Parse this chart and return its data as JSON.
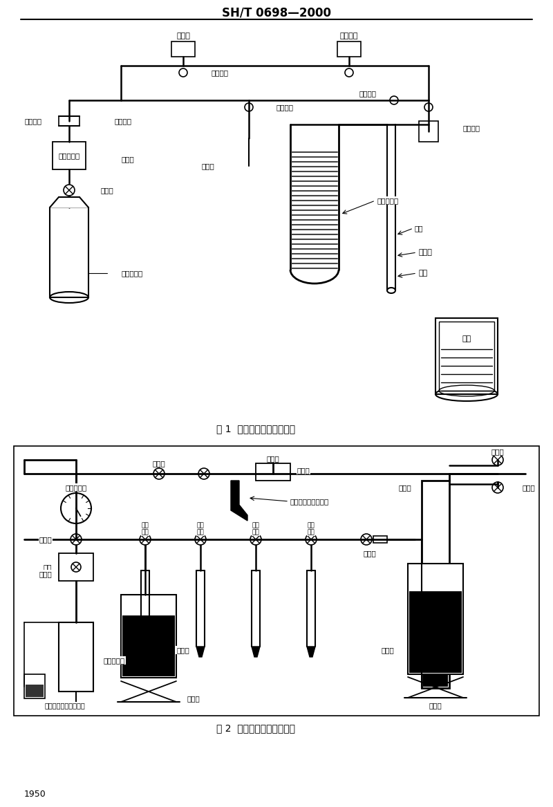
{
  "title": "SH/T 0698—2000",
  "page_number": "1950",
  "fig1_caption": "图 1  制冷剂玻璃型加注系统",
  "fig2_caption": "图 2  制冷剂金属型加注系统",
  "bg_color": "#ffffff",
  "line_color": "#000000",
  "text_color": "#000000"
}
